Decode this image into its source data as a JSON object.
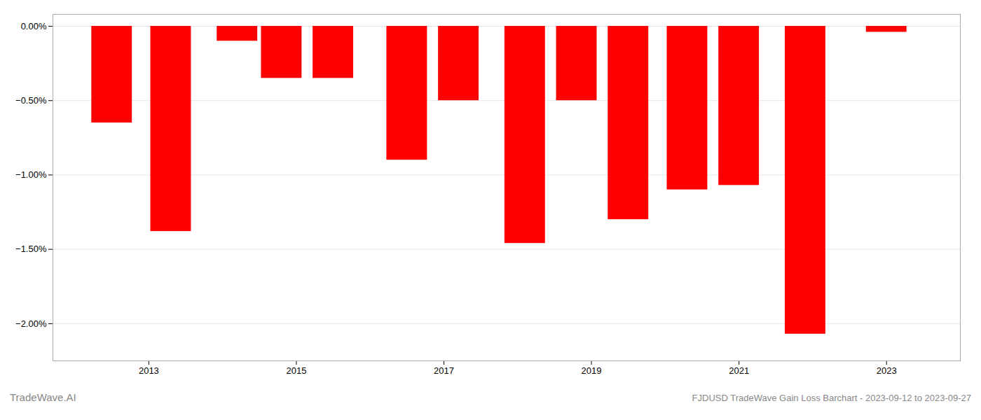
{
  "chart_data": {
    "type": "bar",
    "x": [
      2012.5,
      2013.3,
      2014.2,
      2014.8,
      2015.5,
      2016.5,
      2017.2,
      2018.1,
      2018.8,
      2019.5,
      2020.3,
      2021.0,
      2021.9,
      2023.0
    ],
    "values": [
      -0.65,
      -1.38,
      -0.1,
      -0.35,
      -0.35,
      -0.9,
      -0.5,
      -1.46,
      -0.5,
      -1.3,
      -1.1,
      -1.07,
      -2.07,
      -0.04
    ],
    "color": "#ff0000",
    "xlim": [
      2011.7,
      2024.0
    ],
    "xticks": [
      2013,
      2015,
      2017,
      2019,
      2021,
      2023
    ],
    "ylim": [
      -2.25,
      0.08
    ],
    "yticks": [
      {
        "value": 0.0,
        "label": "0.00%"
      },
      {
        "value": -0.5,
        "label": "−0.50%"
      },
      {
        "value": -1.0,
        "label": "−1.00%"
      },
      {
        "value": -1.5,
        "label": "−1.50%"
      },
      {
        "value": -2.0,
        "label": "−2.00%"
      }
    ],
    "grid": true,
    "annotations": [
      "TradeWave.AI",
      "FJDUSD TradeWave Gain Loss Barchart - 2023-09-12 to 2023-09-27"
    ]
  }
}
